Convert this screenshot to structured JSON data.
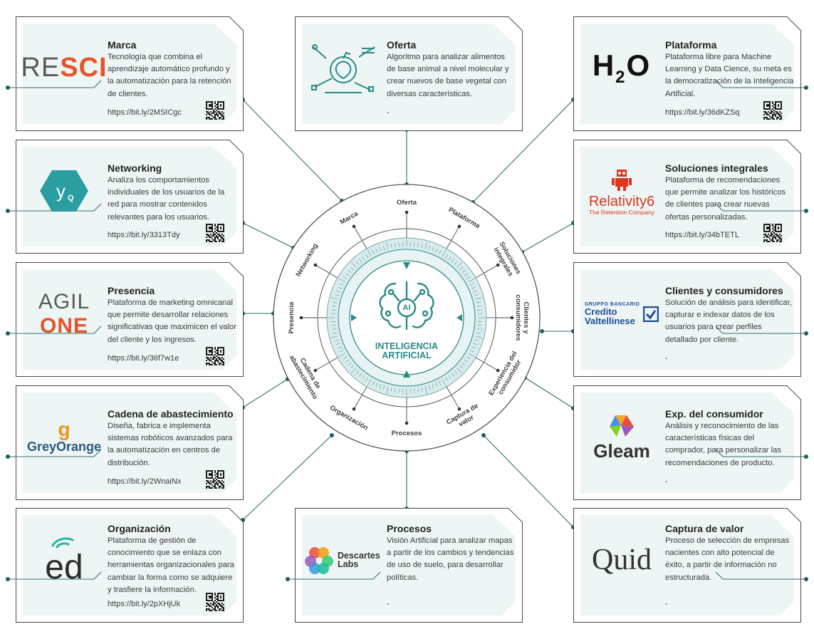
{
  "center": {
    "badge": "AI",
    "line1": "INTELIGENCIA",
    "line2": "ARTIFICIAL"
  },
  "ring_labels": [
    "Oferta",
    "Plataforma",
    "Soluciones integrales",
    "Clientes y consumidores",
    "Experiencia del consumidor",
    "Captura de valor",
    "Procesos",
    "Organización",
    "Cadena de abastecimiento",
    "Presencia",
    "Networking",
    "Marca"
  ],
  "cards": [
    {
      "id": "marca",
      "title": "Marca",
      "logo": "RESCI",
      "desc": "Tecnología que combina el aprendizaje automático profundo y la automatización para la retención de clientes.",
      "url": "https://bit.ly/2MSICgc"
    },
    {
      "id": "oferta",
      "title": "Oferta",
      "logo": "",
      "desc": "Algoritmo para analizar alimentos de base animal a nivel molecular y crear nuevos de base vegetal con diversas características.",
      "url": "-"
    },
    {
      "id": "plataforma",
      "title": "Plataforma",
      "logo": "H2O",
      "desc": "Plataforma libre para Machine Learning y Data Cience, su meta es la democratización de la Inteligencia Artificial.",
      "url": "https://bit.ly/36dKZSq"
    },
    {
      "id": "networking",
      "title": "Networking",
      "logo": "YQ",
      "desc": "Analiza los comportamientos individuales de los usuarios de la red para mostrar contenidos relevantes para los usuarios.",
      "url": "https://bit.ly/3313Tdy"
    },
    {
      "id": "soluciones",
      "title": "Soluciones integrales",
      "logo": "Relativity6",
      "logo_sub": "The Retention Company",
      "desc": "Plataforma de recomendaciones que permite analizar los históricos de clientes para crear nuevas ofertas personalizadas.",
      "url": "https://bit.ly/34bTETL"
    },
    {
      "id": "presencia",
      "title": "Presencia",
      "logo": "AGIL",
      "logo_sub": "ONE",
      "desc": "Plataforma de marketing omnicanal que permite desarrollar relaciones significativas que maximicen el valor del cliente y los ingresos.",
      "url": "https://bit.ly/36f7w1e"
    },
    {
      "id": "clientes",
      "title": "Clientes y consumidores",
      "logo": "Credito Valtellinese",
      "logo_top": "GRUPPO BANCARIO",
      "desc": "Solución de análisis para identificar, capturar e indexar datos de los usuarios para crear perfiles detallado por cliente.",
      "url": "-"
    },
    {
      "id": "cadena",
      "title": "Cadena de abastecimiento",
      "logo": "GreyOrange",
      "desc": "Diseña, fabrica e implementa sistemas robóticos avanzados para la automatización en centros de distribución.",
      "url": "https://bit.ly/2WnaiNx"
    },
    {
      "id": "exp",
      "title": "Exp. del consumidor",
      "logo": "Gleam",
      "desc": "Análisis y reconocimiento de las características físicas del comprador, para personalizar las recomendaciones de producto.",
      "url": "-"
    },
    {
      "id": "organizacion",
      "title": "Organización",
      "logo": "ed",
      "desc": "Plataforma de gestión de conocimiento que se enlaza con herramientas organizacionales para cambiar la forma como se adquiere y trasfiere la información.",
      "url": "https://bit.ly/2pXHjUk"
    },
    {
      "id": "procesos",
      "title": "Procesos",
      "logo": "Descartes Labs",
      "desc": "Visión Artificial para analizar mapas a partir de los cambios y tendencias de uso de suelo, para desarrollar políticas.",
      "url": "-"
    },
    {
      "id": "captura",
      "title": "Captura de valor",
      "logo": "Quid",
      "desc": "Proceso de selección de empresas nacientes con alto potencial de éxito, a partir de información no estructurada.",
      "url": "-"
    }
  ],
  "colors": {
    "teal": "#2a8a86",
    "dark_teal": "#1f6f6c",
    "line": "#3a3a3a",
    "card_bg": "#eef5f5",
    "resci_orange": "#e8542a",
    "h2o": "#111111",
    "relativity": "#d9381e",
    "agil_orange": "#e1552a",
    "credito": "#1f4e9a",
    "greyorange": "#f3921e",
    "gleam": "#333333"
  }
}
